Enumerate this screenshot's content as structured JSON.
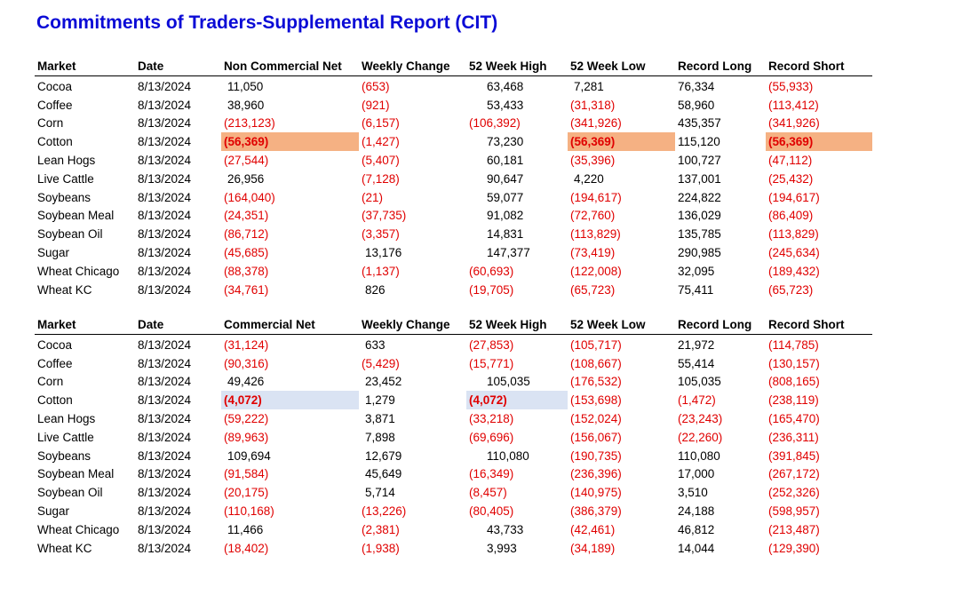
{
  "title": "Commitments of Traders-Supplemental Report (CIT)",
  "colors": {
    "title": "#0b0bd6",
    "negative": "#e00000",
    "highlight_noncommercial": "#f5b183",
    "highlight_commercial": "#dae3f3"
  },
  "tables": [
    {
      "id": "noncommercial",
      "columns": [
        "Market",
        "Date",
        "Non Commercial Net",
        "Weekly Change",
        "52 Week High",
        "52 Week Low",
        "Record Long",
        "Record Short"
      ],
      "rows": [
        [
          "Cocoa",
          "8/13/2024",
          "11,050",
          "(653)",
          "63,468",
          "7,281",
          "76,334",
          "(55,933)"
        ],
        [
          "Coffee",
          "8/13/2024",
          "38,960",
          "(921)",
          "53,433",
          "(31,318)",
          "58,960",
          "(113,412)"
        ],
        [
          "Corn",
          "8/13/2024",
          "(213,123)",
          "(6,157)",
          "(106,392)",
          "(341,926)",
          "435,357",
          "(341,926)"
        ],
        [
          "Cotton",
          "8/13/2024",
          "(56,369)",
          "(1,427)",
          "73,230",
          "(56,369)",
          "115,120",
          "(56,369)"
        ],
        [
          "Lean Hogs",
          "8/13/2024",
          "(27,544)",
          "(5,407)",
          "60,181",
          "(35,396)",
          "100,727",
          "(47,112)"
        ],
        [
          "Live Cattle",
          "8/13/2024",
          "26,956",
          "(7,128)",
          "90,647",
          "4,220",
          "137,001",
          "(25,432)"
        ],
        [
          "Soybeans",
          "8/13/2024",
          "(164,040)",
          "(21)",
          "59,077",
          "(194,617)",
          "224,822",
          "(194,617)"
        ],
        [
          "Soybean Meal",
          "8/13/2024",
          "(24,351)",
          "(37,735)",
          "91,082",
          "(72,760)",
          "136,029",
          "(86,409)"
        ],
        [
          "Soybean Oil",
          "8/13/2024",
          "(86,712)",
          "(3,357)",
          "14,831",
          "(113,829)",
          "135,785",
          "(113,829)"
        ],
        [
          "Sugar",
          "8/13/2024",
          "(45,685)",
          "13,176",
          "147,377",
          "(73,419)",
          "290,985",
          "(245,634)"
        ],
        [
          "Wheat Chicago",
          "8/13/2024",
          "(88,378)",
          "(1,137)",
          "(60,693)",
          "(122,008)",
          "32,095",
          "(189,432)"
        ],
        [
          "Wheat KC",
          "8/13/2024",
          "(34,761)",
          "826",
          "(19,705)",
          "(65,723)",
          "75,411",
          "(65,723)"
        ]
      ],
      "highlights": [
        {
          "row": 3,
          "col": 2,
          "style": "orange"
        },
        {
          "row": 3,
          "col": 5,
          "style": "orange"
        },
        {
          "row": 3,
          "col": 7,
          "style": "orange"
        }
      ]
    },
    {
      "id": "commercial",
      "columns": [
        "Market",
        "Date",
        "Commercial Net",
        "Weekly Change",
        "52 Week High",
        "52 Week Low",
        "Record Long",
        "Record Short"
      ],
      "rows": [
        [
          "Cocoa",
          "8/13/2024",
          "(31,124)",
          "633",
          "(27,853)",
          "(105,717)",
          "21,972",
          "(114,785)"
        ],
        [
          "Coffee",
          "8/13/2024",
          "(90,316)",
          "(5,429)",
          "(15,771)",
          "(108,667)",
          "55,414",
          "(130,157)"
        ],
        [
          "Corn",
          "8/13/2024",
          "49,426",
          "23,452",
          "105,035",
          "(176,532)",
          "105,035",
          "(808,165)"
        ],
        [
          "Cotton",
          "8/13/2024",
          "(4,072)",
          "1,279",
          "(4,072)",
          "(153,698)",
          "(1,472)",
          "(238,119)"
        ],
        [
          "Lean Hogs",
          "8/13/2024",
          "(59,222)",
          "3,871",
          "(33,218)",
          "(152,024)",
          "(23,243)",
          "(165,470)"
        ],
        [
          "Live Cattle",
          "8/13/2024",
          "(89,963)",
          "7,898",
          "(69,696)",
          "(156,067)",
          "(22,260)",
          "(236,311)"
        ],
        [
          "Soybeans",
          "8/13/2024",
          "109,694",
          "12,679",
          "110,080",
          "(190,735)",
          "110,080",
          "(391,845)"
        ],
        [
          "Soybean Meal",
          "8/13/2024",
          "(91,584)",
          "45,649",
          "(16,349)",
          "(236,396)",
          "17,000",
          "(267,172)"
        ],
        [
          "Soybean Oil",
          "8/13/2024",
          "(20,175)",
          "5,714",
          "(8,457)",
          "(140,975)",
          "3,510",
          "(252,326)"
        ],
        [
          "Sugar",
          "8/13/2024",
          "(110,168)",
          "(13,226)",
          "(80,405)",
          "(386,379)",
          "24,188",
          "(598,957)"
        ],
        [
          "Wheat Chicago",
          "8/13/2024",
          "11,466",
          "(2,381)",
          "43,733",
          "(42,461)",
          "46,812",
          "(213,487)"
        ],
        [
          "Wheat KC",
          "8/13/2024",
          "(18,402)",
          "(1,938)",
          "3,993",
          "(34,189)",
          "14,044",
          "(129,390)"
        ]
      ],
      "highlights": [
        {
          "row": 3,
          "col": 2,
          "style": "blue"
        },
        {
          "row": 3,
          "col": 4,
          "style": "blue"
        }
      ]
    }
  ]
}
